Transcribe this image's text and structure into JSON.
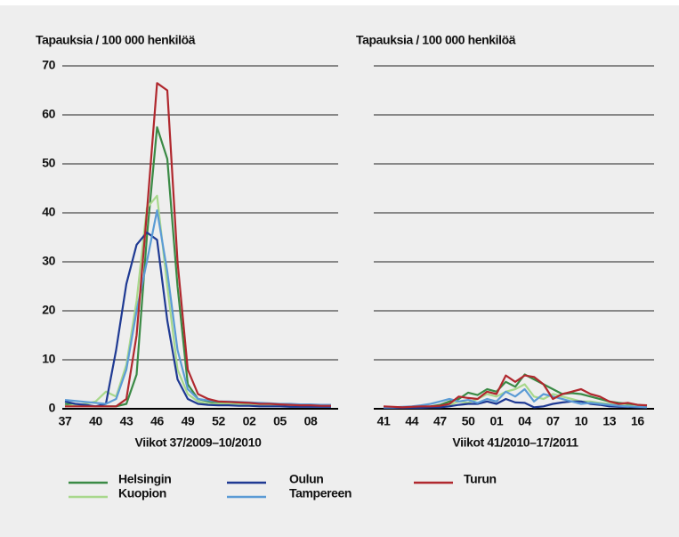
{
  "chart_data": [
    {
      "type": "line",
      "y_label": "Tapauksia / 100 000 henkilöä",
      "x_label": "Viikot 37/2009–10/2010",
      "categories": [
        "37",
        null,
        null,
        "40",
        null,
        null,
        "43",
        null,
        null,
        "46",
        null,
        null,
        "49",
        null,
        null,
        "52",
        null,
        null,
        "02",
        null,
        null,
        "05",
        null,
        null,
        "08",
        null,
        null
      ],
      "ylim": [
        0,
        70
      ],
      "yticks": [
        0,
        10,
        20,
        30,
        40,
        50,
        60,
        70
      ],
      "grid": true,
      "series": [
        {
          "name": "Helsingin",
          "color": "#3a8a45",
          "values": [
            1,
            0.8,
            0.6,
            0.5,
            0.5,
            0.5,
            1,
            7,
            35,
            57.5,
            51,
            25,
            5,
            2,
            1.5,
            1.2,
            1.1,
            1,
            1,
            0.9,
            0.8,
            0.7,
            0.6,
            0.6,
            0.5,
            0.5,
            0.5
          ]
        },
        {
          "name": "Kuopion",
          "color": "#a8d88c",
          "values": [
            0.5,
            0.8,
            1,
            1.5,
            3.5,
            2.5,
            9,
            22,
            41,
            43.5,
            25,
            8,
            3,
            1.5,
            1,
            1,
            1,
            0.9,
            0.8,
            0.8,
            0.7,
            0.7,
            0.6,
            0.6,
            0.6,
            0.5,
            0.5
          ]
        },
        {
          "name": "Oulun",
          "color": "#1f3a93",
          "values": [
            1.5,
            1,
            0.8,
            0.5,
            1,
            12,
            25.5,
            33.5,
            36,
            34.5,
            18,
            6,
            2,
            1,
            0.8,
            0.7,
            0.7,
            0.6,
            0.6,
            0.5,
            0.5,
            0.5,
            0.4,
            0.4,
            0.4,
            0.4,
            0.4
          ]
        },
        {
          "name": "Tampereen",
          "color": "#5b9bd5",
          "values": [
            1.8,
            1.6,
            1.4,
            1.2,
            1,
            2,
            8,
            20,
            30,
            40.5,
            28,
            12,
            4,
            2,
            1.7,
            1.5,
            1.5,
            1.4,
            1.3,
            1.2,
            1.1,
            1,
            1,
            0.9,
            0.9,
            0.8,
            0.8
          ]
        },
        {
          "name": "Turun",
          "color": "#b0282e",
          "values": [
            0.5,
            0.5,
            0.5,
            0.5,
            0.5,
            0.5,
            2,
            15,
            40,
            66.5,
            65,
            30,
            8,
            3,
            2,
            1.5,
            1.4,
            1.3,
            1.2,
            1,
            1,
            0.9,
            0.8,
            0.7,
            0.7,
            0.6,
            0.6
          ]
        }
      ]
    },
    {
      "type": "line",
      "y_label": "Tapauksia / 100 000 henkilöä",
      "x_label": "Viikot 41/2010–17/2011",
      "categories": [
        "41",
        null,
        null,
        "44",
        null,
        null,
        "47",
        null,
        null,
        "50",
        null,
        null,
        "01",
        null,
        null,
        "04",
        null,
        null,
        "07",
        null,
        null,
        "10",
        null,
        null,
        "13",
        null,
        null,
        "16",
        null
      ],
      "ylim": [
        0,
        70
      ],
      "yticks": [
        0,
        10,
        20,
        30,
        40,
        50,
        60,
        70
      ],
      "grid": true,
      "series": [
        {
          "values": [
            0.3,
            0.3,
            0.3,
            0.3,
            0.4,
            0.5,
            0.8,
            1.5,
            2,
            3.3,
            2.8,
            4,
            3.5,
            5.5,
            4.5,
            7,
            6,
            5,
            4,
            3,
            3.2,
            3,
            2.5,
            2,
            1.5,
            1.2,
            1,
            0.8,
            0.6
          ]
        },
        {
          "values": [
            0.2,
            0.2,
            0.2,
            0.3,
            0.3,
            0.4,
            0.5,
            0.8,
            1.5,
            1.2,
            2,
            3,
            2.5,
            3.5,
            4,
            5,
            2.5,
            2,
            3,
            2.5,
            2,
            1.5,
            1.5,
            1.2,
            1,
            0.8,
            0.6,
            0.5,
            0.4
          ]
        },
        {
          "values": [
            0.2,
            0.2,
            0.2,
            0.2,
            0.2,
            0.3,
            0.3,
            0.5,
            0.8,
            1,
            1,
            1.5,
            1,
            2,
            1.3,
            1.2,
            0.3,
            0.5,
            1,
            1.3,
            1.5,
            1.5,
            1,
            0.8,
            0.5,
            0.4,
            0.4,
            0.3,
            0.3
          ]
        },
        {
          "values": [
            0.3,
            0.3,
            0.4,
            0.5,
            0.7,
            1,
            1.5,
            2,
            1.5,
            1.8,
            1.2,
            2,
            1.5,
            3.5,
            2.5,
            4,
            1.5,
            3,
            2.5,
            2,
            1.5,
            1,
            1.2,
            1,
            0.8,
            0.6,
            0.5,
            0.4,
            0.3
          ]
        },
        {
          "values": [
            0.5,
            0.4,
            0.3,
            0.4,
            0.5,
            0.5,
            0.6,
            1,
            2.5,
            2.2,
            2,
            3.5,
            3,
            6.8,
            5.5,
            6.8,
            6.5,
            5,
            2,
            3,
            3.5,
            4,
            3,
            2.5,
            1.5,
            1,
            1.2,
            0.8,
            0.7
          ]
        }
      ]
    }
  ]
}
